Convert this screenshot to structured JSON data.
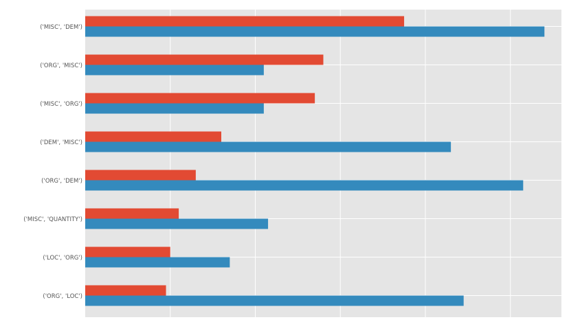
{
  "chart_data": {
    "type": "bar",
    "orientation": "horizontal",
    "categories": [
      "('MISC', 'DEM')",
      "('ORG', 'MISC')",
      "('MISC', 'ORG')",
      "('DEM', 'MISC')",
      "('ORG', 'DEM')",
      "('MISC', 'QUANTITY')",
      "('LOC', 'ORG')",
      "('ORG', 'LOC')"
    ],
    "series": [
      {
        "color": "#e24a33",
        "values": [
          3.75,
          2.8,
          2.7,
          1.6,
          1.3,
          1.1,
          1.0,
          0.95
        ]
      },
      {
        "color": "#348abd",
        "values": [
          5.4,
          2.1,
          2.1,
          4.3,
          5.15,
          2.15,
          1.7,
          4.45
        ]
      }
    ],
    "xlim": [
      0,
      5.6
    ],
    "x_gridlines": [
      1,
      2,
      3,
      4,
      5
    ],
    "grid": true,
    "background": "#e5e5e5",
    "gridline_color": "#ffffff",
    "tick_label_color": "#555555"
  }
}
